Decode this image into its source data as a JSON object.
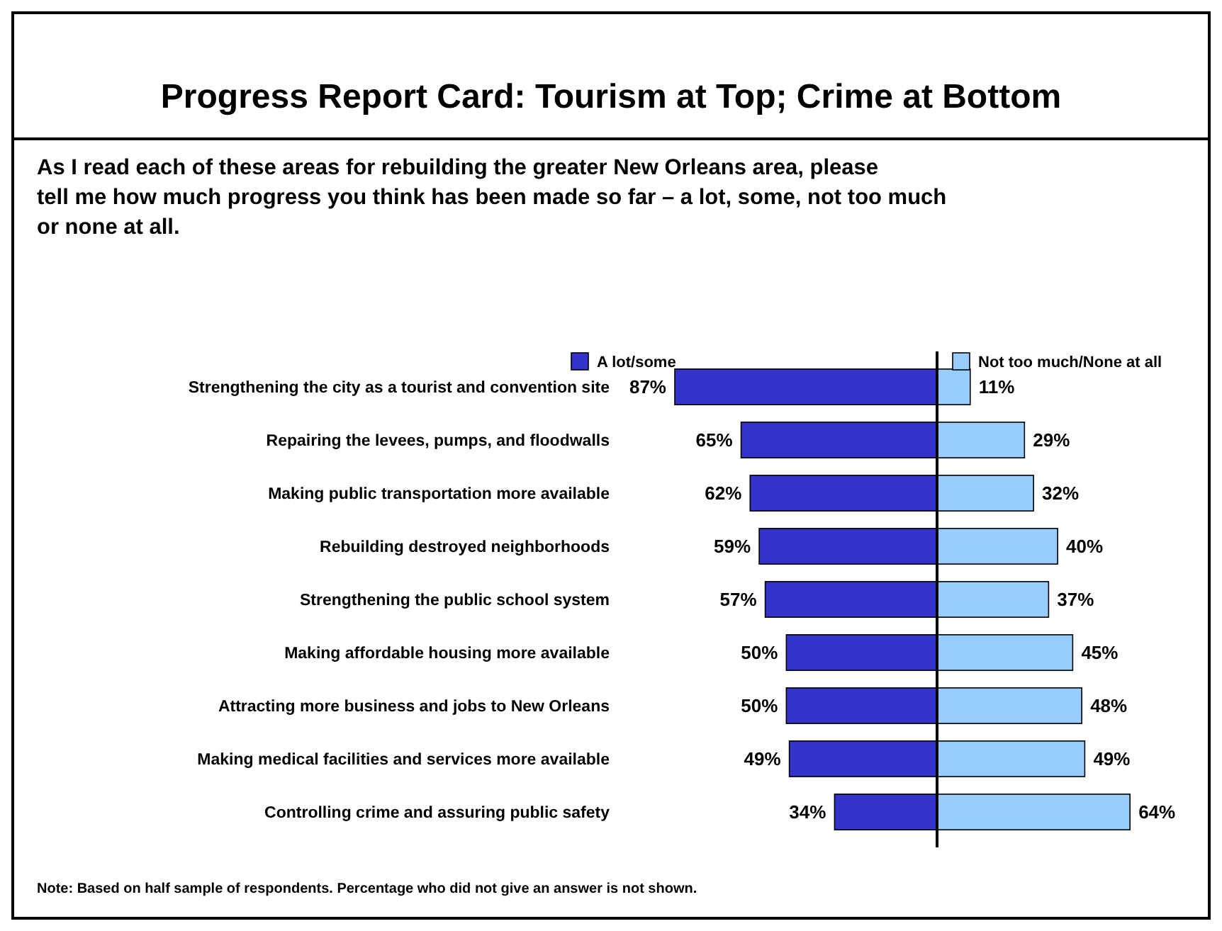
{
  "chart_data": [
    {
      "type": "bar",
      "orientation": "horizontal",
      "title": "Progress Report Card: Tourism at Top; Crime at Bottom",
      "subtitle": "As I read each of these areas for rebuilding the greater New Orleans area, please tell me how much progress you think has been made so far – a lot, some, not too much or none at all.",
      "categories": [
        "Strengthening the city as a tourist and convention site",
        "Repairing the levees, pumps, and floodwalls",
        "Making public transportation more available",
        "Rebuilding destroyed neighborhoods",
        "Strengthening the public school system",
        "Making affordable housing more available",
        "Attracting more business and jobs to New Orleans",
        "Making medical facilities and services more available",
        "Controlling crime and assuring public safety"
      ],
      "series": [
        {
          "name": "A lot/some",
          "color": "#3333cc",
          "values": [
            87,
            65,
            62,
            59,
            57,
            50,
            50,
            49,
            34
          ],
          "value_labels": [
            "87%",
            "65%",
            "62%",
            "59%",
            "57%",
            "50%",
            "50%",
            "49%",
            "34%"
          ]
        }
      ],
      "legend": "top",
      "annotations": [
        "Note: Based on half sample of respondents. Percentage who did not give an answer is not shown."
      ]
    },
    {
      "type": "bar",
      "orientation": "horizontal",
      "categories": [
        null,
        null,
        null,
        null,
        null,
        null,
        null,
        null,
        null
      ],
      "series": [
        {
          "name": "Not too much/None at all",
          "color": "#99ccff",
          "values": [
            11,
            29,
            32,
            40,
            37,
            45,
            48,
            49,
            64
          ],
          "value_labels": [
            "11%",
            "29%",
            "32%",
            "40%",
            "37%",
            "45%",
            "48%",
            "49%",
            "64%"
          ]
        }
      ],
      "legend": "top"
    }
  ]
}
